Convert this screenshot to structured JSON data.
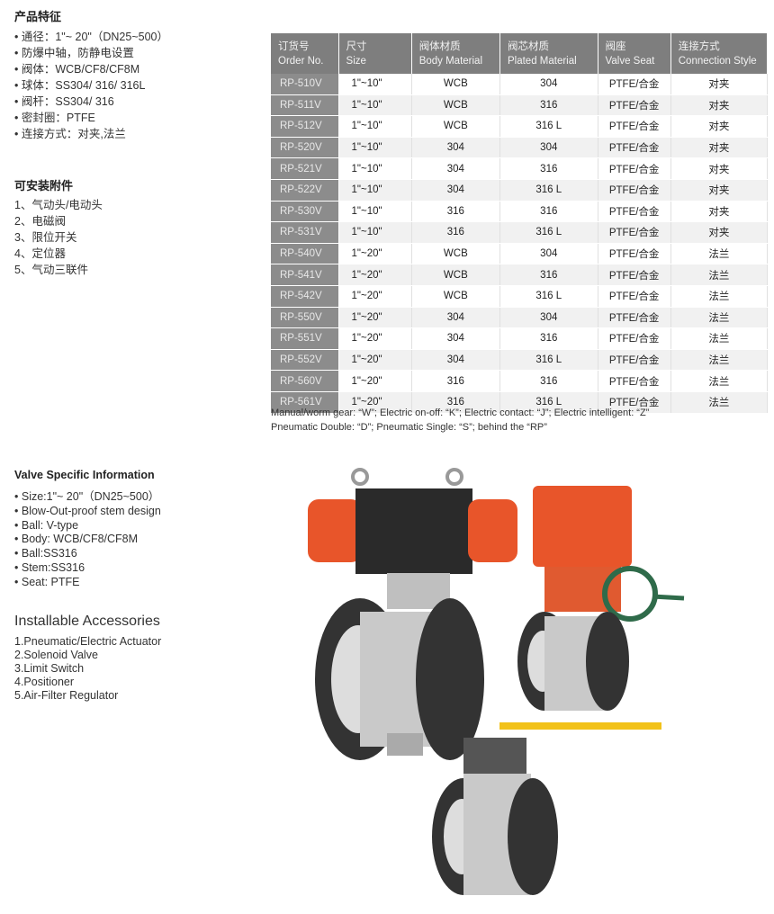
{
  "features_cn": {
    "title": "产品特征",
    "items": [
      "通径：1\"~ 20\"（DN25~500）",
      "防爆中轴，防静电设置",
      "阀体：WCB/CF8/CF8M",
      "球体：SS304/ 316/ 316L",
      "阀杆：SS304/ 316",
      "密封圈：PTFE",
      "连接方式：对夹,法兰"
    ]
  },
  "accessories_cn": {
    "title": "可安装附件",
    "items": [
      "1、气动头/电动头",
      "2、电磁阀",
      "3、限位开关",
      "4、定位器",
      "5、气动三联件"
    ]
  },
  "table": {
    "headers": [
      {
        "cn": "订货号",
        "en": "Order No."
      },
      {
        "cn": "尺寸",
        "en": "Size"
      },
      {
        "cn": "阀体材质",
        "en": "Body Material"
      },
      {
        "cn": "阀芯材质",
        "en": "Plated Material"
      },
      {
        "cn": "阀座",
        "en": "Valve Seat"
      },
      {
        "cn": "连接方式",
        "en": "Connection Style"
      }
    ],
    "rows": [
      [
        "RP-510V",
        "1\"~10\"",
        "WCB",
        "304",
        "PTFE/合金",
        "对夹"
      ],
      [
        "RP-511V",
        "1\"~10\"",
        "WCB",
        "316",
        "PTFE/合金",
        "对夹"
      ],
      [
        "RP-512V",
        "1\"~10\"",
        "WCB",
        "316 L",
        "PTFE/合金",
        "对夹"
      ],
      [
        "RP-520V",
        "1\"~10\"",
        "304",
        "304",
        "PTFE/合金",
        "对夹"
      ],
      [
        "RP-521V",
        "1\"~10\"",
        "304",
        "316",
        "PTFE/合金",
        "对夹"
      ],
      [
        "RP-522V",
        "1\"~10\"",
        "304",
        "316 L",
        "PTFE/合金",
        "对夹"
      ],
      [
        "RP-530V",
        "1\"~10\"",
        "316",
        "316",
        "PTFE/合金",
        "对夹"
      ],
      [
        "RP-531V",
        "1\"~10\"",
        "316",
        "316 L",
        "PTFE/合金",
        "对夹"
      ],
      [
        "RP-540V",
        "1\"~20\"",
        "WCB",
        "304",
        "PTFE/合金",
        "法兰"
      ],
      [
        "RP-541V",
        "1\"~20\"",
        "WCB",
        "316",
        "PTFE/合金",
        "法兰"
      ],
      [
        "RP-542V",
        "1\"~20\"",
        "WCB",
        "316 L",
        "PTFE/合金",
        "法兰"
      ],
      [
        "RP-550V",
        "1\"~20\"",
        "304",
        "304",
        "PTFE/合金",
        "法兰"
      ],
      [
        "RP-551V",
        "1\"~20\"",
        "304",
        "316",
        "PTFE/合金",
        "法兰"
      ],
      [
        "RP-552V",
        "1\"~20\"",
        "304",
        "316 L",
        "PTFE/合金",
        "法兰"
      ],
      [
        "RP-560V",
        "1\"~20\"",
        "316",
        "316",
        "PTFE/合金",
        "法兰"
      ],
      [
        "RP-561V",
        "1\"~20\"",
        "316",
        "316 L",
        "PTFE/合金",
        "法兰"
      ]
    ],
    "note_lines": [
      "Manual/worm gear: “W”; Electric on-off: “K”; Electric contact: “J”; Electric intelligent: “Z”",
      "Pneumatic Double: “D”; Pneumatic Single: “S”; behind the “RP”"
    ]
  },
  "features_en": {
    "title": "Valve Specific Information",
    "items": [
      "Size:1\"~ 20\"（DN25~500）",
      "Blow-Out-proof stem design",
      "Ball:  V-type",
      "Body: WCB/CF8/CF8M",
      "Ball:SS316",
      "Stem:SS316",
      "Seat: PTFE"
    ]
  },
  "accessories_en": {
    "title": "Installable  Accessories",
    "items": [
      "1.Pneumatic/Electric  Actuator",
      "2.Solenoid Valve",
      "3.Limit Switch",
      "4.Positioner",
      "5.Air-Filter Regulator"
    ]
  },
  "colors": {
    "table_header": "#7e7e7e",
    "order_col": "#8c8c8c",
    "actuator_orange": "#e8552a",
    "handwheel_green": "#2f6b4a",
    "lever_yellow": "#f2c21a"
  }
}
